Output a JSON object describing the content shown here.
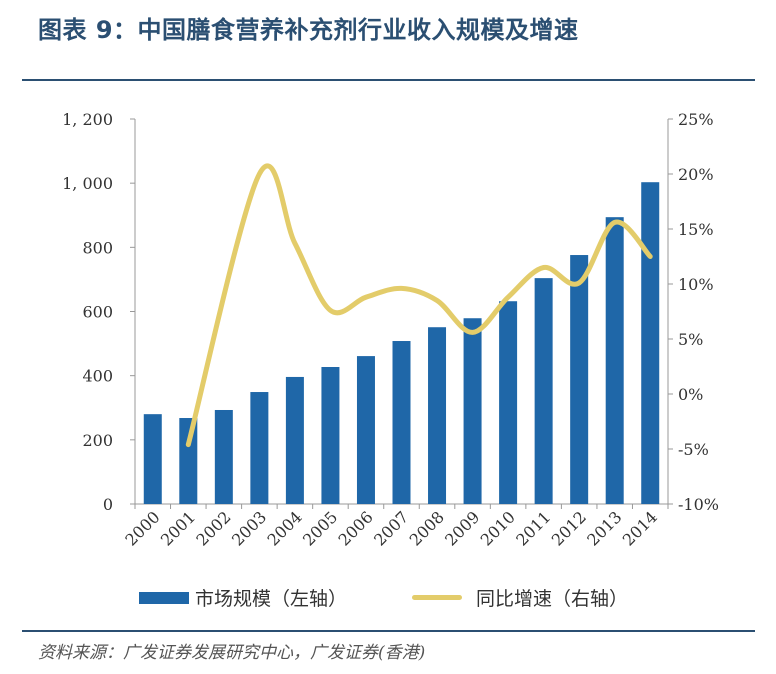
{
  "title": "图表 9：中国膳食营养补充剂行业收入规模及增速",
  "footer": "资料来源：广发证券发展研究中心，广发证券(香港)",
  "chart_data": {
    "type": "bar+line",
    "categories": [
      "2000",
      "2001",
      "2002",
      "2003",
      "2004",
      "2005",
      "2006",
      "2007",
      "2008",
      "2009",
      "2010",
      "2011",
      "2012",
      "2013",
      "2014"
    ],
    "series": [
      {
        "name": "市场规模（左轴）",
        "type": "bar",
        "axis": "left",
        "color": "#1f67a8",
        "values": [
          280,
          268,
          293,
          349,
          396,
          427,
          461,
          508,
          551,
          579,
          632,
          704,
          776,
          894,
          1003
        ]
      },
      {
        "name": "同比增速（右轴）",
        "type": "line",
        "axis": "right",
        "color": "#e3cc6a",
        "values": [
          null,
          -4.6,
          null,
          20.0,
          13.7,
          7.6,
          8.8,
          9.6,
          8.5,
          5.6,
          8.8,
          11.5,
          10.1,
          15.6,
          12.5
        ]
      }
    ],
    "y_left": {
      "lim": [
        0,
        1200
      ],
      "ticks": [
        0,
        200,
        400,
        600,
        800,
        1000,
        1200
      ],
      "tick_labels": [
        "0",
        "200",
        "400",
        "600",
        "800",
        "1, 000",
        "1, 200"
      ]
    },
    "y_right": {
      "lim": [
        -10,
        25
      ],
      "ticks": [
        -10,
        -5,
        0,
        5,
        10,
        15,
        20,
        25
      ],
      "tick_labels": [
        "-10%",
        "-5%",
        "0%",
        "5%",
        "10%",
        "15%",
        "20%",
        "25%"
      ]
    },
    "grid": false,
    "legend": "bottom"
  }
}
